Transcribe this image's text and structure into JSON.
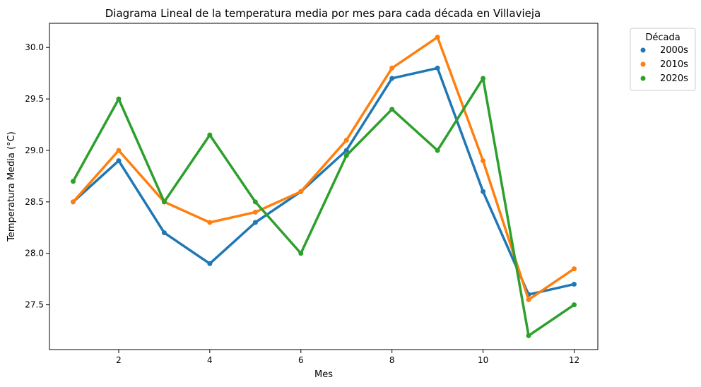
{
  "chart_data": {
    "type": "line",
    "title": "Diagrama Lineal de la temperatura media por mes para cada década en Villavieja",
    "xlabel": "Mes",
    "ylabel": "Temperatura Media (°C)",
    "x": [
      1,
      2,
      3,
      4,
      5,
      6,
      7,
      8,
      9,
      10,
      11,
      12
    ],
    "xlim": [
      0.48,
      12.52
    ],
    "ylim": [
      27.065,
      30.235
    ],
    "xticks": [
      2,
      4,
      6,
      8,
      10,
      12
    ],
    "xtick_labels": [
      "2",
      "4",
      "6",
      "8",
      "10",
      "12"
    ],
    "yticks": [
      27.5,
      28.0,
      28.5,
      29.0,
      29.5,
      30.0
    ],
    "ytick_labels": [
      "27.5",
      "28.0",
      "28.5",
      "29.0",
      "29.5",
      "30.0"
    ],
    "grid": false,
    "legend": {
      "title": "Década",
      "placement": "outside-upper-right"
    },
    "series": [
      {
        "name": "2000s",
        "color": "#1f77b4",
        "values": [
          28.5,
          28.9,
          28.2,
          27.9,
          28.3,
          28.6,
          29.0,
          29.7,
          29.8,
          28.6,
          27.6,
          27.7
        ]
      },
      {
        "name": "2010s",
        "color": "#ff7f0e",
        "values": [
          28.5,
          29.0,
          28.5,
          28.3,
          28.4,
          28.6,
          29.1,
          29.8,
          30.1,
          28.9,
          27.55,
          27.85
        ]
      },
      {
        "name": "2020s",
        "color": "#2ca02c",
        "values": [
          28.7,
          29.5,
          28.5,
          29.15,
          28.5,
          28.0,
          28.95,
          29.4,
          29.0,
          29.7,
          27.2,
          27.5
        ]
      }
    ]
  }
}
